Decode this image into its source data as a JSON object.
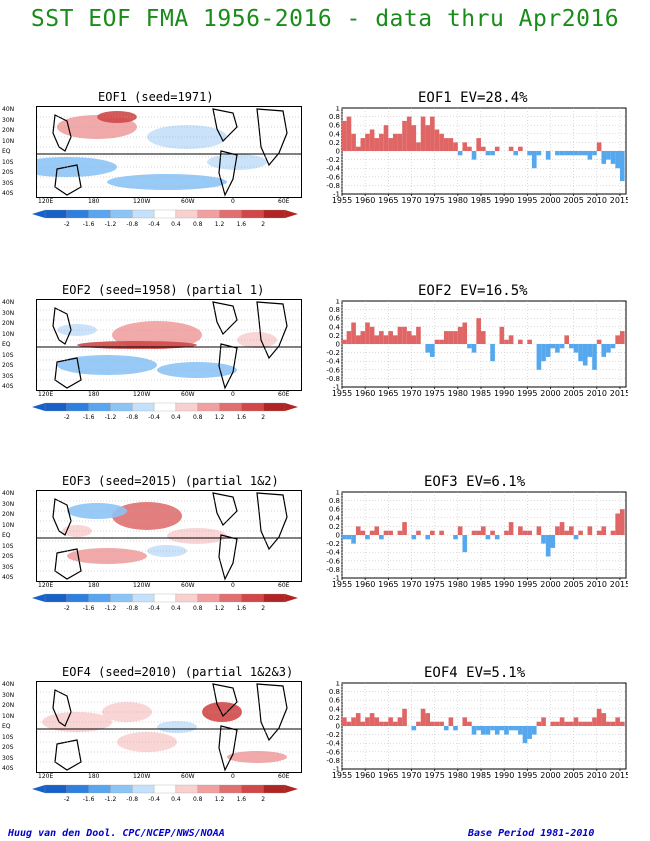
{
  "title": "SST EOF FMA 1956-2016 - data thru Apr2016",
  "footer_left": "Huug van den Dool. CPC/NCEP/NWS/NOAA",
  "footer_right": "Base Period 1981-2010",
  "colors": {
    "title": "#1a8c1a",
    "positive": "#e06666",
    "negative": "#55a8ee",
    "footer": "#0000cc"
  },
  "map_lat_labels": [
    "40N",
    "30N",
    "20N",
    "10N",
    "EQ",
    "10S",
    "20S",
    "30S",
    "40S"
  ],
  "map_lon_labels": [
    "120E",
    "180",
    "120W",
    "60W",
    "0",
    "60E"
  ],
  "colorbar": {
    "levels": [
      "-2",
      "-1.6",
      "-1.2",
      "-0.8",
      "-0.4",
      "0.4",
      "0.8",
      "1.2",
      "1.6",
      "2"
    ],
    "colors": [
      "#1660c8",
      "#2e80e0",
      "#58a6f0",
      "#8cc4f6",
      "#c4e0fa",
      "#ffffff",
      "#f8d0d0",
      "#f0a0a0",
      "#e07070",
      "#d04848",
      "#b02424"
    ]
  },
  "panels": [
    {
      "map_title": "EOF1  (seed=1971)",
      "ts_title": "EOF1  EV=28.4%"
    },
    {
      "map_title": "EOF2  (seed=1958) (partial 1)",
      "ts_title": "EOF2  EV=16.5%"
    },
    {
      "map_title": "EOF3  (seed=2015) (partial 1&2)",
      "ts_title": "EOF3  EV=6.1%"
    },
    {
      "map_title": "EOF4  (seed=2010) (partial 1&2&3)",
      "ts_title": "EOF4  EV=5.1%"
    }
  ],
  "chart_data": [
    {
      "type": "bar",
      "title": "EOF1  EV=28.4%",
      "x": [
        1956,
        1957,
        1958,
        1959,
        1960,
        1961,
        1962,
        1963,
        1964,
        1965,
        1966,
        1967,
        1968,
        1969,
        1970,
        1971,
        1972,
        1973,
        1974,
        1975,
        1976,
        1977,
        1978,
        1979,
        1980,
        1981,
        1982,
        1983,
        1984,
        1985,
        1986,
        1987,
        1988,
        1989,
        1990,
        1991,
        1992,
        1993,
        1994,
        1995,
        1996,
        1997,
        1998,
        1999,
        2000,
        2001,
        2002,
        2003,
        2004,
        2005,
        2006,
        2007,
        2008,
        2009,
        2010,
        2011,
        2012,
        2013,
        2014,
        2015,
        2016
      ],
      "values": [
        0.7,
        0.8,
        0.4,
        0.1,
        0.3,
        0.4,
        0.5,
        0.3,
        0.4,
        0.6,
        0.3,
        0.4,
        0.4,
        0.7,
        0.8,
        0.6,
        0.2,
        0.8,
        0.6,
        0.8,
        0.5,
        0.4,
        0.3,
        0.3,
        0.2,
        -0.1,
        0.2,
        0.1,
        -0.2,
        0.3,
        0.1,
        -0.1,
        -0.1,
        0.1,
        0.0,
        0.0,
        0.1,
        -0.1,
        0.1,
        0.0,
        -0.1,
        -0.4,
        -0.1,
        0.0,
        -0.2,
        0.0,
        -0.1,
        -0.1,
        -0.1,
        -0.1,
        -0.1,
        -0.1,
        -0.1,
        -0.2,
        -0.1,
        0.2,
        -0.3,
        -0.2,
        -0.3,
        -0.4,
        -0.7
      ],
      "ylim": [
        -1,
        1
      ],
      "yticks": [
        "1",
        "0.8",
        "0.6",
        "0.4",
        "0.2",
        "0",
        "-0.2",
        "-0.4",
        "-0.6",
        "-0.8",
        "-1"
      ],
      "xtick_labels": [
        "1955",
        "1960",
        "1965",
        "1970",
        "1975",
        "1980",
        "1985",
        "1990",
        "1995",
        "2000",
        "2005",
        "2010",
        "2015"
      ],
      "grid": true
    },
    {
      "type": "bar",
      "title": "EOF2  EV=16.5%",
      "x": [
        1956,
        1957,
        1958,
        1959,
        1960,
        1961,
        1962,
        1963,
        1964,
        1965,
        1966,
        1967,
        1968,
        1969,
        1970,
        1971,
        1972,
        1973,
        1974,
        1975,
        1976,
        1977,
        1978,
        1979,
        1980,
        1981,
        1982,
        1983,
        1984,
        1985,
        1986,
        1987,
        1988,
        1989,
        1990,
        1991,
        1992,
        1993,
        1994,
        1995,
        1996,
        1997,
        1998,
        1999,
        2000,
        2001,
        2002,
        2003,
        2004,
        2005,
        2006,
        2007,
        2008,
        2009,
        2010,
        2011,
        2012,
        2013,
        2014,
        2015,
        2016
      ],
      "values": [
        0.1,
        0.3,
        0.5,
        0.2,
        0.3,
        0.5,
        0.4,
        0.2,
        0.3,
        0.2,
        0.3,
        0.2,
        0.4,
        0.4,
        0.3,
        0.2,
        0.4,
        0.0,
        -0.2,
        -0.3,
        0.1,
        0.1,
        0.3,
        0.3,
        0.3,
        0.4,
        0.5,
        -0.1,
        -0.2,
        0.6,
        0.3,
        0.0,
        -0.4,
        0.0,
        0.4,
        0.1,
        0.2,
        0.0,
        0.1,
        0.0,
        0.1,
        0.0,
        -0.6,
        -0.4,
        -0.3,
        -0.1,
        -0.2,
        -0.1,
        0.2,
        -0.1,
        -0.2,
        -0.4,
        -0.5,
        -0.3,
        -0.6,
        0.1,
        -0.3,
        -0.2,
        -0.1,
        0.2,
        0.3
      ],
      "ylim": [
        -1,
        1
      ],
      "yticks": [
        "1",
        "0.8",
        "0.6",
        "0.4",
        "0.2",
        "0",
        "-0.2",
        "-0.4",
        "-0.6",
        "-0.8",
        "-1"
      ],
      "xtick_labels": [
        "1955",
        "1960",
        "1965",
        "1970",
        "1975",
        "1980",
        "1985",
        "1990",
        "1995",
        "2000",
        "2005",
        "2010",
        "2015"
      ],
      "grid": true
    },
    {
      "type": "bar",
      "title": "EOF3  EV=6.1%",
      "x": [
        1956,
        1957,
        1958,
        1959,
        1960,
        1961,
        1962,
        1963,
        1964,
        1965,
        1966,
        1967,
        1968,
        1969,
        1970,
        1971,
        1972,
        1973,
        1974,
        1975,
        1976,
        1977,
        1978,
        1979,
        1980,
        1981,
        1982,
        1983,
        1984,
        1985,
        1986,
        1987,
        1988,
        1989,
        1990,
        1991,
        1992,
        1993,
        1994,
        1995,
        1996,
        1997,
        1998,
        1999,
        2000,
        2001,
        2002,
        2003,
        2004,
        2005,
        2006,
        2007,
        2008,
        2009,
        2010,
        2011,
        2012,
        2013,
        2014,
        2015,
        2016
      ],
      "values": [
        -0.1,
        -0.1,
        -0.2,
        0.2,
        0.1,
        -0.1,
        0.1,
        0.2,
        -0.1,
        0.1,
        0.1,
        0.0,
        0.1,
        0.3,
        0.0,
        -0.1,
        0.1,
        0.0,
        -0.1,
        0.1,
        0.0,
        0.1,
        0.0,
        0.0,
        -0.1,
        0.2,
        -0.4,
        0.0,
        0.1,
        0.1,
        0.2,
        -0.1,
        0.1,
        -0.1,
        0.0,
        0.1,
        0.3,
        0.0,
        0.2,
        0.1,
        0.1,
        0.0,
        0.2,
        -0.2,
        -0.5,
        -0.3,
        0.2,
        0.3,
        0.1,
        0.2,
        -0.1,
        0.1,
        0.0,
        0.2,
        0.0,
        0.1,
        0.2,
        0.0,
        0.1,
        0.5,
        0.6
      ],
      "ylim": [
        -1,
        1
      ],
      "yticks": [
        "1",
        "0.8",
        "0.6",
        "0.4",
        "0.2",
        "0",
        "-0.2",
        "-0.4",
        "-0.6",
        "-0.8",
        "-1"
      ],
      "xtick_labels": [
        "1955",
        "1960",
        "1965",
        "1970",
        "1975",
        "1980",
        "1985",
        "1990",
        "1995",
        "2000",
        "2005",
        "2010",
        "2015"
      ],
      "grid": true
    },
    {
      "type": "bar",
      "title": "EOF4  EV=5.1%",
      "x": [
        1956,
        1957,
        1958,
        1959,
        1960,
        1961,
        1962,
        1963,
        1964,
        1965,
        1966,
        1967,
        1968,
        1969,
        1970,
        1971,
        1972,
        1973,
        1974,
        1975,
        1976,
        1977,
        1978,
        1979,
        1980,
        1981,
        1982,
        1983,
        1984,
        1985,
        1986,
        1987,
        1988,
        1989,
        1990,
        1991,
        1992,
        1993,
        1994,
        1995,
        1996,
        1997,
        1998,
        1999,
        2000,
        2001,
        2002,
        2003,
        2004,
        2005,
        2006,
        2007,
        2008,
        2009,
        2010,
        2011,
        2012,
        2013,
        2014,
        2015,
        2016
      ],
      "values": [
        0.2,
        0.1,
        0.2,
        0.3,
        0.1,
        0.2,
        0.3,
        0.2,
        0.1,
        0.1,
        0.2,
        0.1,
        0.2,
        0.4,
        0.0,
        -0.1,
        0.1,
        0.4,
        0.3,
        0.1,
        0.1,
        0.1,
        -0.1,
        0.2,
        -0.1,
        0.0,
        0.2,
        0.1,
        -0.2,
        -0.1,
        -0.2,
        -0.2,
        -0.1,
        -0.2,
        -0.1,
        -0.2,
        -0.1,
        -0.1,
        -0.2,
        -0.4,
        -0.3,
        -0.2,
        0.1,
        0.2,
        0.0,
        0.1,
        0.1,
        0.2,
        0.1,
        0.1,
        0.2,
        0.1,
        0.1,
        0.1,
        0.2,
        0.4,
        0.3,
        0.1,
        0.1,
        0.2,
        0.1
      ],
      "ylim": [
        -1,
        1
      ],
      "yticks": [
        "1",
        "0.8",
        "0.6",
        "0.4",
        "0.2",
        "0",
        "-0.2",
        "-0.4",
        "-0.6",
        "-0.8",
        "-1"
      ],
      "xtick_labels": [
        "1955",
        "1960",
        "1965",
        "1970",
        "1975",
        "1980",
        "1985",
        "1990",
        "1995",
        "2000",
        "2005",
        "2010",
        "2015"
      ],
      "grid": true
    }
  ]
}
